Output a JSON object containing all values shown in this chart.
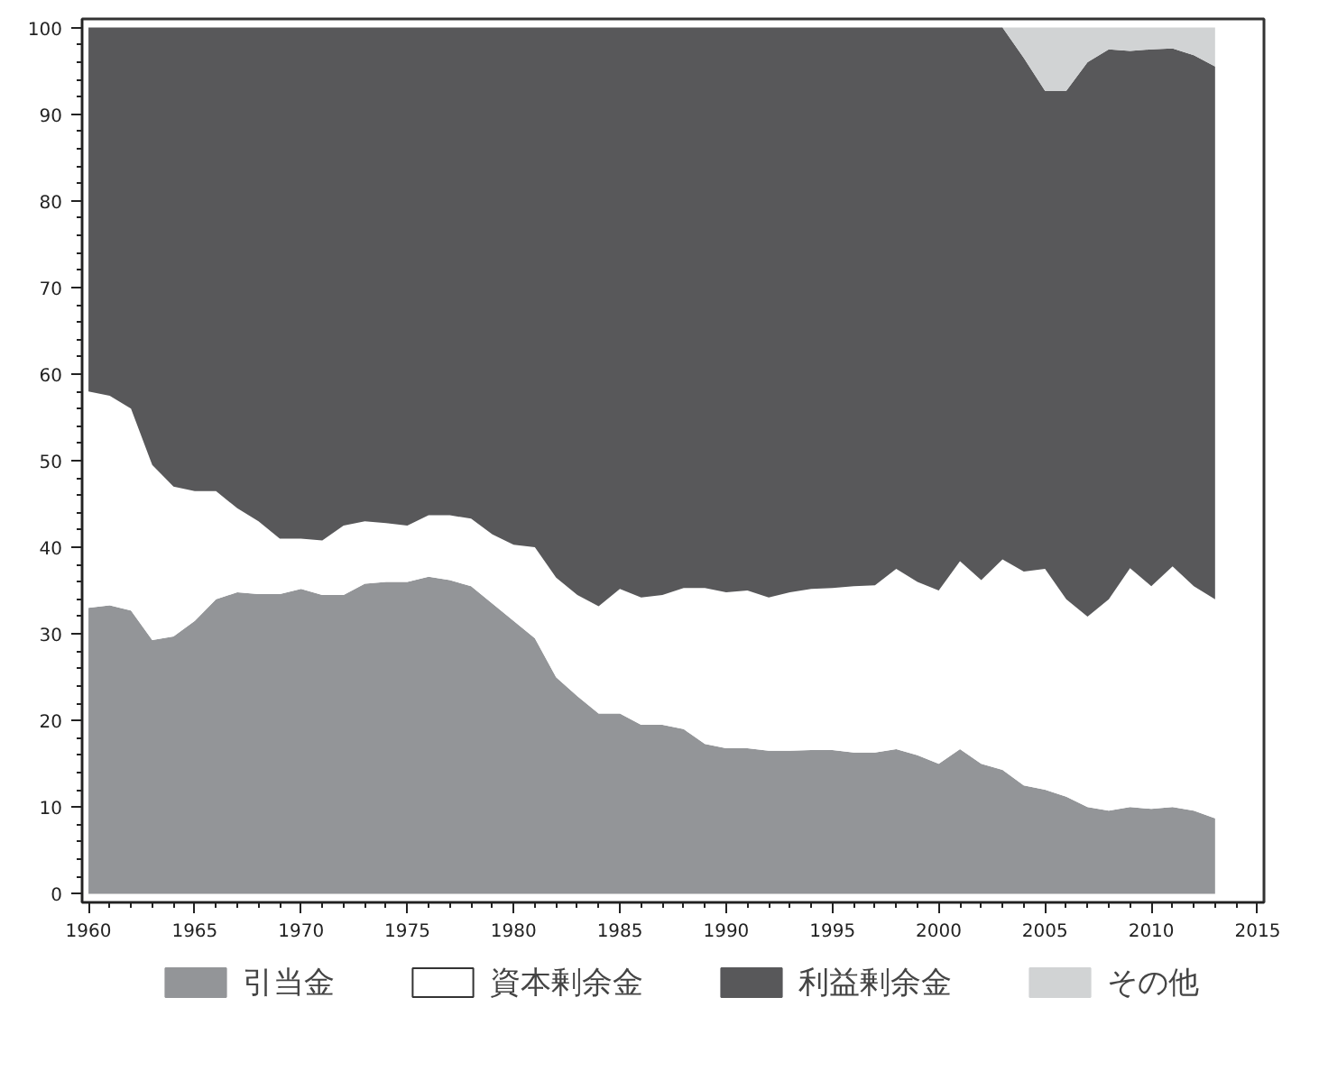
{
  "chart_data": {
    "type": "area",
    "stacked": true,
    "x": [
      1960,
      1961,
      1962,
      1963,
      1964,
      1965,
      1966,
      1967,
      1968,
      1969,
      1970,
      1971,
      1972,
      1973,
      1974,
      1975,
      1976,
      1977,
      1978,
      1979,
      1980,
      1981,
      1982,
      1983,
      1984,
      1985,
      1986,
      1987,
      1988,
      1989,
      1990,
      1991,
      1992,
      1993,
      1994,
      1995,
      1996,
      1997,
      1998,
      1999,
      2000,
      2001,
      2002,
      2003,
      2004,
      2005,
      2006,
      2007,
      2008,
      2009,
      2010,
      2011,
      2012,
      2013
    ],
    "series": [
      {
        "name": "引当金",
        "color": "#939598",
        "values": [
          33,
          33.3,
          32.7,
          29.3,
          29.7,
          31.5,
          34,
          34.8,
          34.6,
          34.6,
          35.2,
          34.5,
          34.5,
          35.8,
          36,
          36,
          36.6,
          36.2,
          35.5,
          33.5,
          31.5,
          29.5,
          25,
          22.8,
          20.8,
          20.8,
          19.5,
          19.5,
          19,
          17.3,
          16.8,
          16.8,
          16.5,
          16.5,
          16.6,
          16.6,
          16.3,
          16.3,
          16.7,
          16,
          15,
          16.7,
          15,
          14.3,
          12.5,
          12,
          11.2,
          10,
          9.6,
          10,
          9.8,
          10,
          9.6,
          8.7
        ]
      },
      {
        "name": "資本剰余金",
        "color": "#ffffff",
        "values": [
          25,
          24.2,
          23.3,
          20.2,
          17.3,
          15,
          12.5,
          9.7,
          8.4,
          6.4,
          5.8,
          6.3,
          8,
          7.2,
          6.8,
          6.5,
          7.1,
          7.5,
          7.8,
          8,
          8.8,
          10.5,
          11.5,
          11.7,
          12.4,
          14.4,
          14.7,
          15,
          16.3,
          18,
          18,
          18.2,
          17.7,
          18.3,
          18.6,
          18.7,
          19.2,
          19.3,
          20.8,
          20,
          20,
          21.7,
          21.2,
          24.3,
          24.7,
          25.5,
          22.8,
          22,
          24.4,
          27.6,
          25.7,
          27.8,
          25.9,
          25.3
        ]
      },
      {
        "name": "利益剰余金",
        "color": "#58585a",
        "values": [
          42,
          42.5,
          44,
          50.5,
          53,
          53.5,
          53.5,
          55.5,
          57,
          59,
          59,
          59.2,
          57.5,
          57,
          57.2,
          57.5,
          56.3,
          56.3,
          56.7,
          58.5,
          59.7,
          60,
          63.5,
          65.5,
          66.8,
          64.8,
          65.8,
          65.5,
          64.7,
          64.7,
          65.2,
          65,
          65.8,
          65.2,
          64.8,
          64.7,
          64.5,
          64.4,
          62.5,
          64,
          65,
          61.6,
          63.8,
          61.4,
          59.3,
          55.2,
          58.7,
          64,
          63.5,
          59.7,
          62,
          59.8,
          61.3,
          61.5
        ]
      },
      {
        "name": "その他",
        "color": "#d1d3d4",
        "values": [
          0,
          0,
          0,
          0,
          0,
          0,
          0,
          0,
          0,
          0,
          0,
          0,
          0,
          0,
          0,
          0,
          0,
          0,
          0,
          0,
          0,
          0,
          0,
          0,
          0,
          0,
          0,
          0,
          0,
          0,
          0,
          0,
          0,
          0,
          0,
          0,
          0,
          0,
          0,
          0,
          0,
          0,
          0,
          0,
          3.5,
          7.3,
          7.3,
          4,
          2.5,
          2.7,
          2.5,
          2.4,
          3.2,
          4.5
        ]
      }
    ],
    "xlim": [
      1959.7,
      2015.3
    ],
    "ylim": [
      -1,
      101
    ],
    "xticks": [
      1960,
      1965,
      1970,
      1975,
      1980,
      1985,
      1990,
      1995,
      2000,
      2005,
      2010,
      2015
    ],
    "yticks": [
      0,
      10,
      20,
      30,
      40,
      50,
      60,
      70,
      80,
      90,
      100
    ],
    "grid": false,
    "legend": "bottom"
  }
}
